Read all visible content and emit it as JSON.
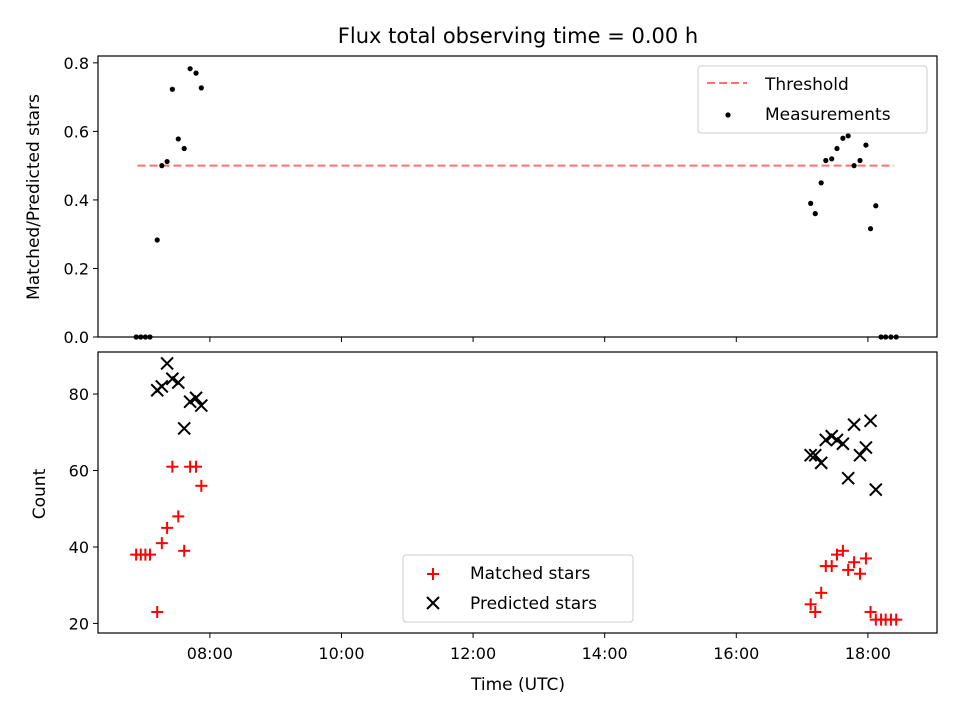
{
  "chart_data": [
    {
      "type": "scatter",
      "title": "Flux total observing time = 0.00 h",
      "xlabel": "",
      "ylabel": "Matched/Predicted stars",
      "ylim": [
        0,
        0.82
      ],
      "yticks": [
        0.0,
        0.2,
        0.4,
        0.6,
        0.8
      ],
      "ytick_labels": [
        "0.0",
        "0.2",
        "0.4",
        "0.6",
        "0.8"
      ],
      "xlim_hours": [
        6.3,
        19.05
      ],
      "legend": {
        "placement": "top-right",
        "entries": [
          "Threshold",
          "Measurements"
        ]
      },
      "threshold": {
        "name": "Threshold",
        "value": 0.5,
        "x_range_hours": [
          6.9,
          18.4
        ],
        "color": "#ff7070",
        "style": "dashed"
      },
      "series": [
        {
          "name": "Measurements",
          "color": "#000000",
          "points": [
            [
              6.88,
              0.0
            ],
            [
              6.95,
              0.0
            ],
            [
              7.02,
              0.0
            ],
            [
              7.09,
              0.0
            ],
            [
              7.2,
              0.283
            ],
            [
              7.27,
              0.5
            ],
            [
              7.35,
              0.512
            ],
            [
              7.43,
              0.723
            ],
            [
              7.52,
              0.578
            ],
            [
              7.61,
              0.55
            ],
            [
              7.7,
              0.783
            ],
            [
              7.79,
              0.77
            ],
            [
              7.87,
              0.727
            ],
            [
              17.13,
              0.39
            ],
            [
              17.2,
              0.36
            ],
            [
              17.29,
              0.45
            ],
            [
              17.36,
              0.515
            ],
            [
              17.45,
              0.52
            ],
            [
              17.53,
              0.55
            ],
            [
              17.62,
              0.58
            ],
            [
              17.7,
              0.587
            ],
            [
              17.79,
              0.5
            ],
            [
              17.88,
              0.515
            ],
            [
              17.97,
              0.56
            ],
            [
              18.04,
              0.316
            ],
            [
              18.12,
              0.383
            ],
            [
              18.2,
              0.0
            ],
            [
              18.27,
              0.0
            ],
            [
              18.35,
              0.0
            ],
            [
              18.43,
              0.0
            ]
          ]
        }
      ]
    },
    {
      "type": "scatter",
      "title": "",
      "xlabel": "Time (UTC)",
      "ylabel": "Count",
      "ylim": [
        17.5,
        91
      ],
      "yticks": [
        20,
        40,
        60,
        80
      ],
      "ytick_labels": [
        "20",
        "40",
        "60",
        "80"
      ],
      "xlim_hours": [
        6.3,
        19.05
      ],
      "xticks_hours": [
        8,
        10,
        12,
        14,
        16,
        18
      ],
      "xtick_labels": [
        "08:00",
        "10:00",
        "12:00",
        "14:00",
        "16:00",
        "18:00"
      ],
      "legend": {
        "placement": "lower-center",
        "entries": [
          "Matched stars",
          "Predicted stars"
        ]
      },
      "series": [
        {
          "name": "Matched stars",
          "marker": "plus",
          "color": "#ff0000",
          "points": [
            [
              6.88,
              38
            ],
            [
              6.95,
              38
            ],
            [
              7.02,
              38
            ],
            [
              7.09,
              38
            ],
            [
              7.2,
              23
            ],
            [
              7.27,
              41
            ],
            [
              7.35,
              45
            ],
            [
              7.43,
              61
            ],
            [
              7.52,
              48
            ],
            [
              7.61,
              39
            ],
            [
              7.7,
              61
            ],
            [
              7.79,
              61
            ],
            [
              7.87,
              56
            ],
            [
              17.13,
              25
            ],
            [
              17.2,
              23
            ],
            [
              17.29,
              28
            ],
            [
              17.36,
              35
            ],
            [
              17.45,
              35
            ],
            [
              17.53,
              38
            ],
            [
              17.62,
              39
            ],
            [
              17.7,
              34
            ],
            [
              17.79,
              36
            ],
            [
              17.88,
              33
            ],
            [
              17.97,
              37
            ],
            [
              18.04,
              23
            ],
            [
              18.12,
              21
            ],
            [
              18.2,
              21
            ],
            [
              18.27,
              21
            ],
            [
              18.35,
              21
            ],
            [
              18.43,
              21
            ]
          ]
        },
        {
          "name": "Predicted stars",
          "marker": "x",
          "color": "#000000",
          "points": [
            [
              7.2,
              81
            ],
            [
              7.27,
              82
            ],
            [
              7.35,
              88
            ],
            [
              7.43,
              84
            ],
            [
              7.52,
              83
            ],
            [
              7.61,
              71
            ],
            [
              7.7,
              78
            ],
            [
              7.79,
              79
            ],
            [
              7.87,
              77
            ],
            [
              17.13,
              64
            ],
            [
              17.2,
              64
            ],
            [
              17.29,
              62
            ],
            [
              17.36,
              68
            ],
            [
              17.45,
              69
            ],
            [
              17.53,
              68
            ],
            [
              17.62,
              67
            ],
            [
              17.7,
              58
            ],
            [
              17.79,
              72
            ],
            [
              17.88,
              64
            ],
            [
              17.97,
              66
            ],
            [
              18.04,
              73
            ],
            [
              18.12,
              55
            ]
          ]
        }
      ]
    }
  ]
}
